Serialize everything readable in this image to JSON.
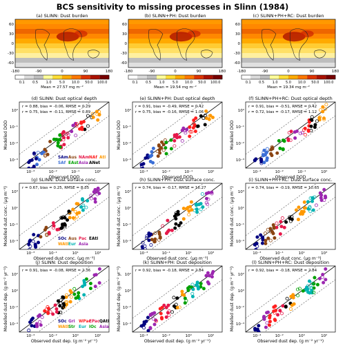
{
  "figure_title": "BCS sensitivity to missing processes in Slinn (1984)",
  "colors": {
    "SAm": "#000080",
    "SAf": "#3b6fd6",
    "Aus": "#8b4513",
    "EAst": "#00a000",
    "NAm": "#e6194b",
    "Asia": "#9c27b0",
    "NAf": "#ff2020",
    "ANet": "#000000",
    "Atl": "#ff9900",
    "SOc": "#000080",
    "WAtl": "#ff9900",
    "Eur": "#00b3b3",
    "Pac": "#e6194b",
    "EAtl": "#000000",
    "Gri": "#9c27b0",
    "Str": "#00a000",
    "WPac": "#ff2020",
    "EPac": "#e6194b",
    "IOc": "#00a000",
    "QAtl": "#000000"
  },
  "map_panels": [
    {
      "title": "(a) SLINN: Dust burden",
      "mean_text": "Mean = 27.57 mg m⁻²"
    },
    {
      "title": "(b) SLINN+PH: Dust burden",
      "mean_text": "Mean = 19.54 mg m⁻²"
    },
    {
      "title": "(c) SLINN+PH+RC: Dust burden",
      "mean_text": "Mean = 19.34 mg m⁻²"
    }
  ],
  "map_axes": {
    "xticks": [
      "-180",
      "-90",
      "0",
      "90",
      "180"
    ],
    "yticks": [
      "60",
      "30",
      "0",
      "-30",
      "-60"
    ]
  },
  "colorbar": {
    "ticks": [
      "0.1",
      "0.5",
      "1.0",
      "5.0",
      "10.0",
      "50.0",
      "100.0"
    ],
    "colors": [
      "#ffffff",
      "#d9d9d9",
      "#bdbdbd",
      "#ffff99",
      "#ffdd33",
      "#ffaa00",
      "#ff7700",
      "#dd3300",
      "#aa1100",
      "#770000"
    ]
  },
  "rows": [
    {
      "panels": [
        {
          "title": "(d) SLINN: Dust optical depth",
          "stats": [
            "r = 0.88, bias = -0.06, RMSE = 0.29",
            "r = 0.75, bias = -0.11, RMSE = 0.89"
          ]
        },
        {
          "title": "(e) SLINN+PH: Dust optical depth",
          "stats": [
            "r = 0.91, bias = -0.49, RMSE = 0.42",
            "r = 0.75, bias = -0.16, RMSE = 1.06"
          ]
        },
        {
          "title": "(f) SLINN+PH+RC: Dust optical depth",
          "stats": [
            "r = 0.91, bias = -0.51, RMSE = 0.42",
            "r = 0.72, bias = -0.17, RMSE = 1.12"
          ]
        }
      ],
      "xlabel": "Observed DOD",
      "ylabel": "Modelled DOD",
      "ticks": [
        "10⁻³",
        "10⁻²",
        "10⁻¹",
        "10⁰"
      ],
      "legend": [
        [
          "SAm",
          "Aus",
          "NAm",
          "NAf",
          "Atl"
        ],
        [
          "SAf",
          "EAst",
          "Asia",
          "ANet"
        ]
      ]
    },
    {
      "panels": [
        {
          "title": "(g) SLINN: Dust surface conc.",
          "stats": [
            "r = 0.67, bias = 0.25, RMSE = 8.35"
          ]
        },
        {
          "title": "(h) SLINN+PH: Dust surface conc.",
          "stats": [
            "r = 0.74, bias = -0.17, RMSE = 16.27"
          ]
        },
        {
          "title": "(i) SLINN+PH+RC: Dust surface conc.",
          "stats": [
            "r = 0.74, bias = -0.19, RMSE = 10.65"
          ]
        }
      ],
      "xlabel": "Observed dust conc. (μg m⁻³)",
      "ylabel": "Modelled dust conc. (μg m⁻³)",
      "ticks": [
        "10⁻³",
        "10⁻¹",
        "10¹",
        "10³"
      ],
      "legend": [
        [
          "SOc",
          "Aus",
          "Pac",
          "EAtl"
        ],
        [
          "WAtl",
          "Eur",
          "Asia"
        ]
      ]
    },
    {
      "panels": [
        {
          "title": "(j) SLINN: Dust deposition",
          "stats": [
            "r = 0.91, bias = -0.08, RMSE = 2.36"
          ]
        },
        {
          "title": "(k) SLINN+PH: Dust deposition",
          "stats": [
            "r = 0.92, bias = -0.18, RMSE = 2.84"
          ]
        },
        {
          "title": "(l) SLINN+PH+RC: Dust deposition",
          "stats": [
            "r = 0.92, bias = -0.18, RMSE = 2.84"
          ]
        }
      ],
      "xlabel": "Observed dust dep. (g m⁻² yr⁻¹)",
      "ylabel": "Modelled dust dep. (g m⁻² yr⁻¹)",
      "ticks": [
        "10⁻⁴",
        "10⁻²",
        "10⁰",
        "10²"
      ],
      "legend": [
        [
          "SOc",
          "Gri",
          "WPac",
          "EPac",
          "QAtl"
        ],
        [
          "WAtl",
          "Str",
          "Eur",
          "IOc",
          "Asia"
        ]
      ]
    }
  ],
  "chart_data": [
    {
      "type": "scatter",
      "title": "(d) SLINN: Dust optical depth",
      "xlabel": "Observed DOD",
      "ylabel": "Modelled DOD",
      "log_axes": true,
      "xlim": [
        0.001,
        10
      ],
      "ylim": [
        0.001,
        10
      ],
      "series": [
        {
          "name": "SAm",
          "points": [
            [
              0.02,
              0.02
            ],
            [
              0.03,
              0.025
            ],
            [
              0.04,
              0.03
            ]
          ]
        },
        {
          "name": "SAf",
          "points": [
            [
              0.03,
              0.015
            ],
            [
              0.05,
              0.03
            ]
          ]
        },
        {
          "name": "Aus",
          "points": [
            [
              0.02,
              0.03
            ],
            [
              0.04,
              0.04
            ],
            [
              0.06,
              0.05
            ]
          ]
        },
        {
          "name": "EAst",
          "points": [
            [
              0.2,
              0.15
            ],
            [
              0.3,
              0.25
            ]
          ]
        },
        {
          "name": "NAm",
          "points": [
            [
              0.05,
              0.04
            ],
            [
              0.08,
              0.06
            ]
          ]
        },
        {
          "name": "Asia",
          "points": [
            [
              0.3,
              0.1
            ],
            [
              0.5,
              0.2
            ],
            [
              0.4,
              0.06
            ]
          ]
        },
        {
          "name": "NAf",
          "points": [
            [
              0.3,
              0.4
            ],
            [
              0.5,
              0.5
            ],
            [
              0.8,
              0.9
            ],
            [
              1.0,
              1.2
            ]
          ]
        },
        {
          "name": "ANet",
          "points": [
            [
              0.6,
              0.8
            ],
            [
              0.8,
              1.0
            ],
            [
              1.0,
              1.5
            ]
          ]
        },
        {
          "name": "Atl",
          "points": [
            [
              0.2,
              0.3
            ],
            [
              0.3,
              0.35
            ]
          ]
        }
      ]
    },
    {
      "type": "scatter",
      "title": "(g) SLINN: Dust surface conc.",
      "xlabel": "Observed dust conc. (μg m⁻³)",
      "ylabel": "Modelled dust conc. (μg m⁻³)",
      "log_axes": true,
      "xlim": [
        0.001,
        1000
      ],
      "ylim": [
        0.001,
        1000
      ],
      "series": [
        {
          "name": "SOc",
          "points": [
            [
              0.05,
              0.05
            ],
            [
              0.1,
              0.1
            ],
            [
              0.2,
              0.2
            ]
          ]
        },
        {
          "name": "Aus",
          "points": [
            [
              1,
              1
            ],
            [
              2,
              2
            ],
            [
              3,
              1.5
            ]
          ]
        },
        {
          "name": "Pac",
          "points": [
            [
              0.2,
              5
            ],
            [
              0.5,
              8
            ],
            [
              1,
              10
            ],
            [
              2,
              3
            ]
          ]
        },
        {
          "name": "EAtl",
          "points": [
            [
              30,
              40
            ],
            [
              50,
              60
            ]
          ]
        },
        {
          "name": "WAtl",
          "points": [
            [
              5,
              8
            ],
            [
              10,
              12
            ]
          ]
        },
        {
          "name": "Eur",
          "points": [
            [
              2,
              5
            ],
            [
              4,
              6
            ]
          ]
        },
        {
          "name": "Asia",
          "points": [
            [
              10,
              10
            ],
            [
              20,
              15
            ]
          ]
        }
      ]
    },
    {
      "type": "scatter",
      "title": "(j) SLINN: Dust deposition",
      "xlabel": "Observed dust dep. (g m⁻² yr⁻¹)",
      "ylabel": "Modelled dust dep. (g m⁻² yr⁻¹)",
      "log_axes": true,
      "xlim": [
        0.0001,
        1000
      ],
      "ylim": [
        0.0001,
        1000
      ],
      "series": [
        {
          "name": "SOc",
          "points": [
            [
              0.0005,
              0.0008
            ],
            [
              0.001,
              0.001
            ],
            [
              0.002,
              0.001
            ]
          ]
        },
        {
          "name": "Gri",
          "points": [
            [
              0.01,
              0.01
            ],
            [
              0.05,
              0.03
            ]
          ]
        },
        {
          "name": "WPac",
          "points": [
            [
              0.1,
              0.2
            ],
            [
              0.3,
              0.4
            ],
            [
              0.5,
              0.3
            ]
          ]
        },
        {
          "name": "EPac",
          "points": [
            [
              0.05,
              0.1
            ],
            [
              0.1,
              0.08
            ]
          ]
        },
        {
          "name": "QAtl",
          "points": [
            [
              2,
              3
            ],
            [
              5,
              6
            ]
          ]
        },
        {
          "name": "WAtl",
          "points": [
            [
              1,
              2
            ],
            [
              3,
              3
            ]
          ]
        },
        {
          "name": "Str",
          "points": [
            [
              5,
              4
            ],
            [
              10,
              6
            ]
          ]
        },
        {
          "name": "Eur",
          "points": [
            [
              0.5,
              0.8
            ],
            [
              1,
              1
            ]
          ]
        },
        {
          "name": "IOc",
          "points": [
            [
              0.3,
              0.2
            ]
          ]
        },
        {
          "name": "Asia",
          "points": [
            [
              20,
              20
            ],
            [
              50,
              40
            ]
          ]
        }
      ]
    }
  ]
}
